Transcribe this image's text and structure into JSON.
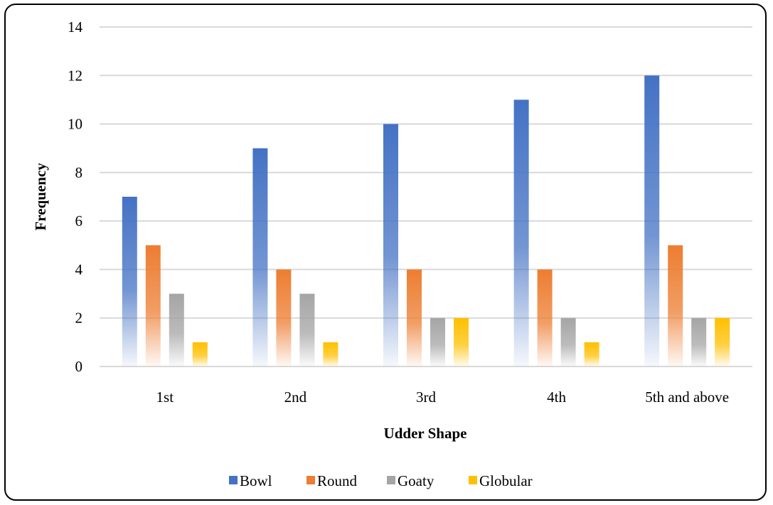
{
  "chart_data": {
    "type": "bar",
    "title": "",
    "xlabel": "Udder Shape",
    "ylabel": "Frequency",
    "categories": [
      "1st",
      "2nd",
      "3rd",
      "4th",
      "5th and above"
    ],
    "ylim": [
      0,
      14
    ],
    "yticks": [
      "0",
      "2",
      "4",
      "6",
      "8",
      "10",
      "12",
      "14"
    ],
    "grid": true,
    "legend_position": "bottom",
    "series": [
      {
        "name": "Bowl",
        "values": [
          7,
          9,
          10,
          11,
          12
        ],
        "color": "#4472C4"
      },
      {
        "name": "Round",
        "values": [
          5,
          4,
          4,
          4,
          5
        ],
        "color": "#ED7D31"
      },
      {
        "name": "Goaty",
        "values": [
          3,
          3,
          2,
          2,
          2
        ],
        "color": "#A5A5A5"
      },
      {
        "name": "Globular",
        "values": [
          1,
          1,
          2,
          1,
          2
        ],
        "color": "#FFC000"
      }
    ]
  }
}
